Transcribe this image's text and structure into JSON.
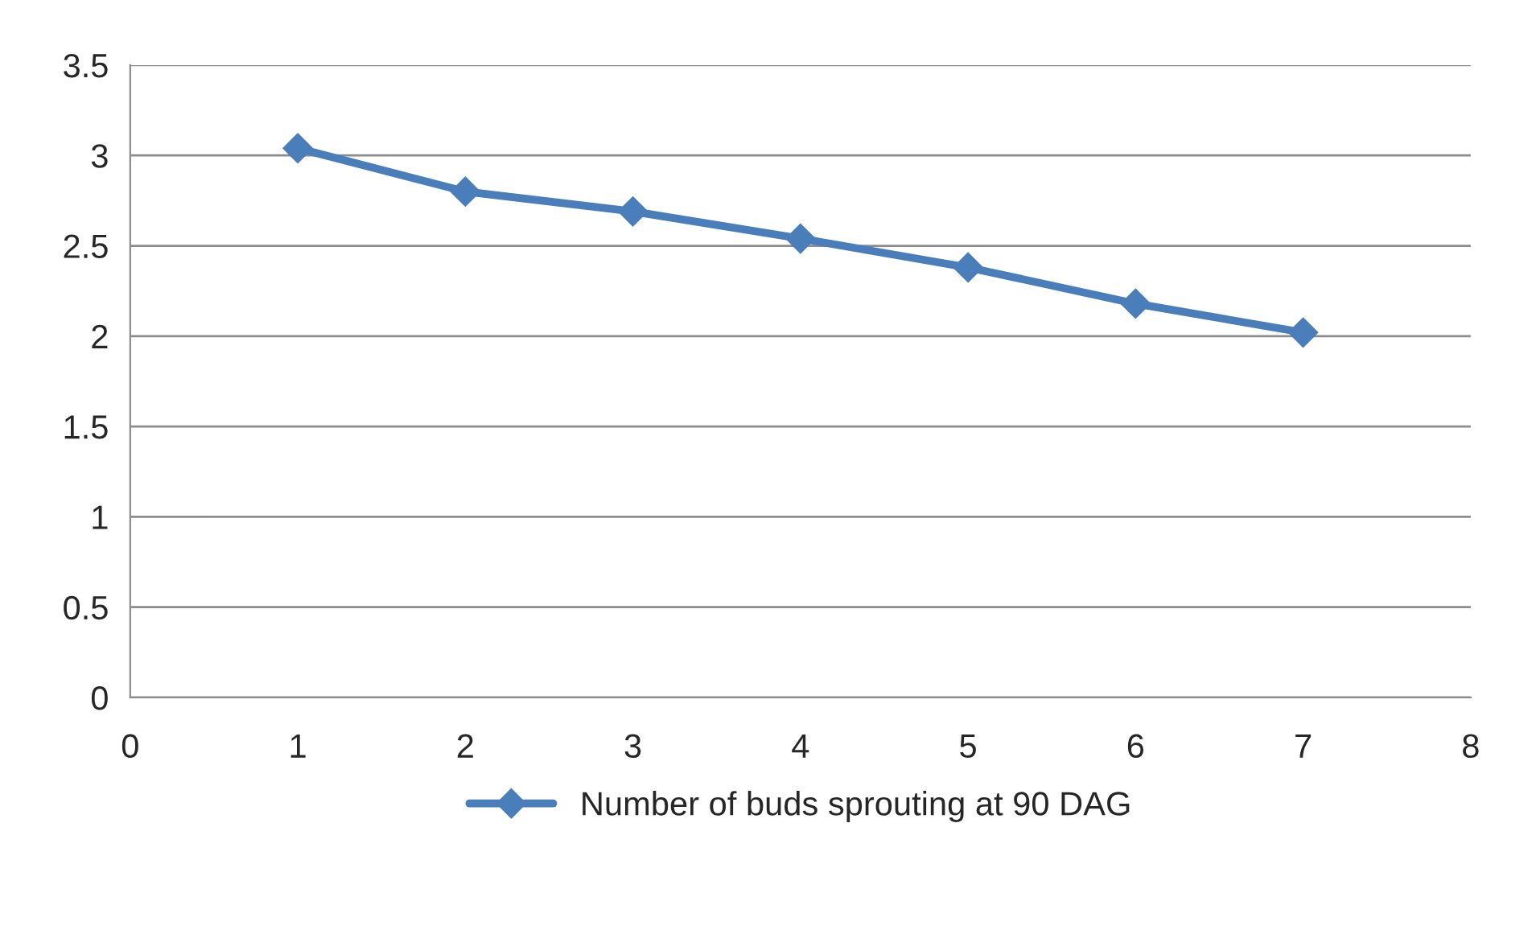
{
  "chart_data": {
    "type": "line",
    "x": [
      1,
      2,
      3,
      4,
      5,
      6,
      7
    ],
    "series": [
      {
        "name": "Number of buds sprouting at 90 DAG",
        "color": "#4a7ebb",
        "values": [
          3.04,
          2.8,
          2.69,
          2.54,
          2.38,
          2.18,
          2.02
        ]
      }
    ],
    "xlim": [
      0,
      8
    ],
    "xticks": [
      0,
      1,
      2,
      3,
      4,
      5,
      6,
      7,
      8
    ],
    "ylim": [
      0,
      3.5
    ],
    "yticks": [
      0,
      0.5,
      1,
      1.5,
      2,
      2.5,
      3,
      3.5
    ],
    "grid": "y",
    "legend": "bottom",
    "marker": "diamond",
    "line_style": "solid"
  }
}
